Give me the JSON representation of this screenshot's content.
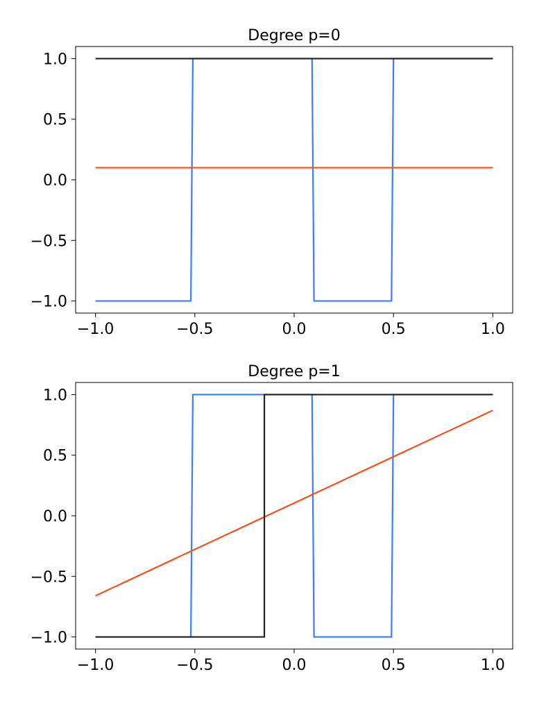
{
  "chart_data": [
    {
      "type": "line",
      "title": "Degree p=0",
      "xlabel": "",
      "ylabel": "",
      "xlim": [
        -1.1,
        1.1
      ],
      "ylim": [
        -1.1,
        1.1
      ],
      "xticks": [
        -1.0,
        -0.5,
        0.0,
        0.5,
        1.0
      ],
      "xtick_labels": [
        "−1.0",
        "−0.5",
        "0.0",
        "0.5",
        "1.0"
      ],
      "yticks": [
        1.0,
        0.5,
        0.0,
        -0.5,
        -1.0
      ],
      "ytick_labels": [
        "1.0",
        "0.5",
        "0.0",
        "−0.5",
        "−1.0"
      ],
      "grid": false,
      "series": [
        {
          "color": "#3b7df8",
          "x": [
            -1.0,
            -0.52,
            -0.51,
            0.09,
            0.1,
            0.49,
            0.5,
            1.0
          ],
          "y": [
            -1.0,
            -1.0,
            1.0,
            1.0,
            -1.0,
            -1.0,
            1.0,
            1.0
          ]
        },
        {
          "color": "#f4511e",
          "x": [
            -1.0,
            1.0
          ],
          "y": [
            0.1,
            0.1
          ]
        },
        {
          "color": "#212121",
          "x": [
            -1.0,
            1.0
          ],
          "y": [
            1.0,
            1.0
          ]
        }
      ]
    },
    {
      "type": "line",
      "title": "Degree p=1",
      "xlabel": "",
      "ylabel": "",
      "xlim": [
        -1.1,
        1.1
      ],
      "ylim": [
        -1.1,
        1.1
      ],
      "xticks": [
        -1.0,
        -0.5,
        0.0,
        0.5,
        1.0
      ],
      "xtick_labels": [
        "−1.0",
        "−0.5",
        "0.0",
        "0.5",
        "1.0"
      ],
      "yticks": [
        1.0,
        0.5,
        0.0,
        -0.5,
        -1.0
      ],
      "ytick_labels": [
        "1.0",
        "0.5",
        "0.0",
        "−0.5",
        "−1.0"
      ],
      "grid": false,
      "series": [
        {
          "color": "#3b7df8",
          "x": [
            -1.0,
            -0.52,
            -0.51,
            0.09,
            0.1,
            0.49,
            0.5,
            1.0
          ],
          "y": [
            -1.0,
            -1.0,
            1.0,
            1.0,
            -1.0,
            -1.0,
            1.0,
            1.0
          ]
        },
        {
          "color": "#f4511e",
          "x": [
            -1.0,
            1.0
          ],
          "y": [
            -0.66,
            0.87
          ]
        },
        {
          "color": "#212121",
          "x": [
            -1.0,
            -0.15,
            -0.15,
            1.0
          ],
          "y": [
            -1.0,
            -1.0,
            1.0,
            1.0
          ]
        }
      ]
    }
  ]
}
